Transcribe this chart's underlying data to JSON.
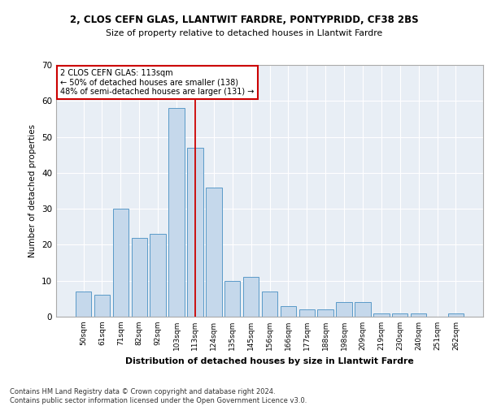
{
  "title1": "2, CLOS CEFN GLAS, LLANTWIT FARDRE, PONTYPRIDD, CF38 2BS",
  "title2": "Size of property relative to detached houses in Llantwit Fardre",
  "xlabel": "Distribution of detached houses by size in Llantwit Fardre",
  "ylabel": "Number of detached properties",
  "categories": [
    "50sqm",
    "61sqm",
    "71sqm",
    "82sqm",
    "92sqm",
    "103sqm",
    "113sqm",
    "124sqm",
    "135sqm",
    "145sqm",
    "156sqm",
    "166sqm",
    "177sqm",
    "188sqm",
    "198sqm",
    "209sqm",
    "219sqm",
    "230sqm",
    "240sqm",
    "251sqm",
    "262sqm"
  ],
  "values": [
    7,
    6,
    30,
    22,
    23,
    58,
    47,
    36,
    10,
    11,
    7,
    3,
    2,
    2,
    4,
    4,
    1,
    1,
    1,
    0,
    1
  ],
  "bar_color": "#c5d8eb",
  "bar_edge_color": "#5a9ac8",
  "highlight_index": 6,
  "highlight_line_color": "#cc0000",
  "ylim": [
    0,
    70
  ],
  "yticks": [
    0,
    10,
    20,
    30,
    40,
    50,
    60,
    70
  ],
  "annotation_text": "2 CLOS CEFN GLAS: 113sqm\n← 50% of detached houses are smaller (138)\n48% of semi-detached houses are larger (131) →",
  "annotation_box_color": "#ffffff",
  "annotation_box_edge": "#cc0000",
  "footer": "Contains HM Land Registry data © Crown copyright and database right 2024.\nContains public sector information licensed under the Open Government Licence v3.0.",
  "bg_color": "#e8eef5",
  "grid_color": "#ffffff"
}
